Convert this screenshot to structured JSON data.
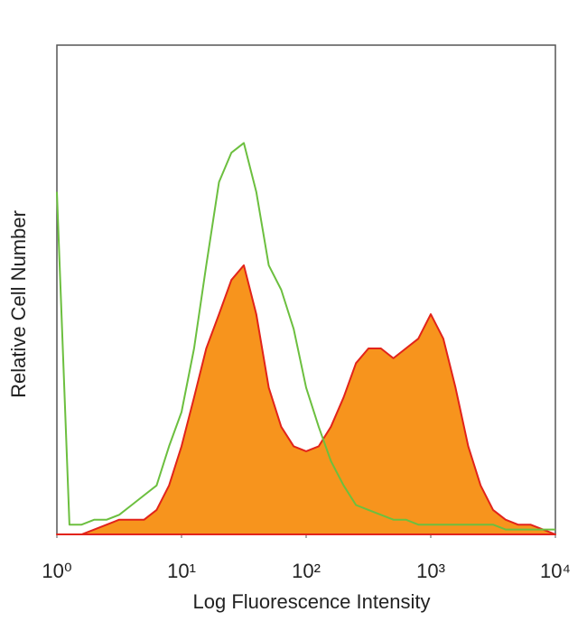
{
  "chart_data": {
    "type": "histogram-overlay",
    "xlabel": "Log Fluorescence Intensity",
    "ylabel": "Relative Cell Number",
    "xscale": "log",
    "xlim": [
      1,
      10000
    ],
    "ylim": [
      0,
      100
    ],
    "xticks": [
      {
        "value": 1,
        "label": "10⁰"
      },
      {
        "value": 10,
        "label": "10¹"
      },
      {
        "value": 100,
        "label": "10²"
      },
      {
        "value": 1000,
        "label": "10³"
      },
      {
        "value": 10000,
        "label": "10⁴"
      }
    ],
    "x": [
      1,
      1.26,
      1.58,
      2,
      2.51,
      3.16,
      3.98,
      5.01,
      6.31,
      7.94,
      10,
      12.6,
      15.8,
      20,
      25.1,
      31.6,
      39.8,
      50.1,
      63.1,
      79.4,
      100,
      126,
      158,
      200,
      251,
      316,
      398,
      501,
      631,
      794,
      1000,
      1260,
      1580,
      2000,
      2510,
      3160,
      3980,
      5010,
      6310,
      7940,
      10000
    ],
    "series": [
      {
        "color": "#f7941d",
        "edge_color": "#e2231a",
        "filled": true,
        "values": [
          0,
          0,
          0,
          1,
          2,
          3,
          3,
          3,
          5,
          10,
          18,
          28,
          38,
          45,
          52,
          55,
          45,
          30,
          22,
          18,
          17,
          18,
          22,
          28,
          35,
          38,
          38,
          36,
          38,
          40,
          45,
          40,
          30,
          18,
          10,
          5,
          3,
          2,
          2,
          1,
          0
        ]
      },
      {
        "color": "#6cbf3f",
        "filled": false,
        "values": [
          70,
          2,
          2,
          3,
          3,
          4,
          6,
          8,
          10,
          18,
          25,
          38,
          55,
          72,
          78,
          80,
          70,
          55,
          50,
          42,
          30,
          22,
          15,
          10,
          6,
          5,
          4,
          3,
          3,
          2,
          2,
          2,
          2,
          2,
          2,
          2,
          1,
          1,
          1,
          1,
          1
        ]
      }
    ]
  }
}
